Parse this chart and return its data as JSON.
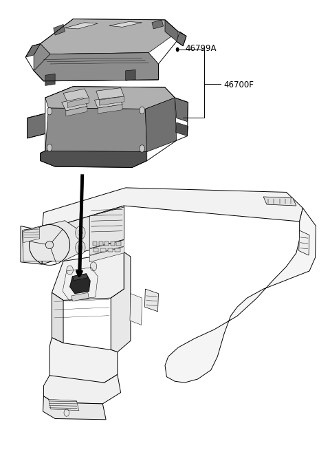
{
  "background_color": "#ffffff",
  "fig_width": 4.8,
  "fig_height": 6.57,
  "dpi": 100,
  "label_46799A": "46799A",
  "label_46700F": "46700F",
  "label_font_size": 8.5,
  "line_color": "#000000",
  "part_gray": "#8c8c8c",
  "part_mid": "#707070",
  "part_dark": "#505050",
  "part_light": "#b0b0b0",
  "part_lighter": "#c8c8c8"
}
